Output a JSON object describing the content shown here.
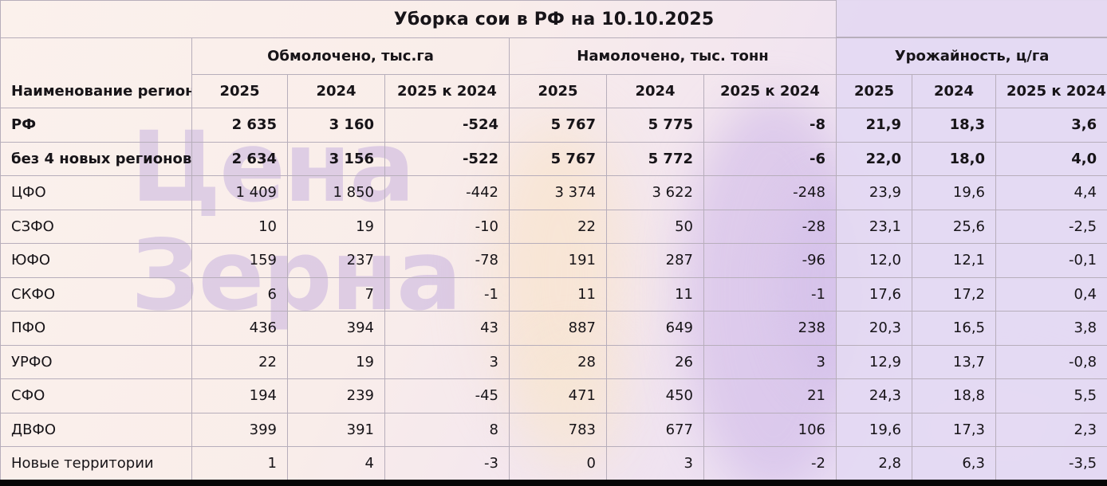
{
  "title": "Уборка сои в РФ на 10.10.2025",
  "watermark": {
    "line1": "Цена",
    "line2": "Зерна"
  },
  "colors": {
    "background_pink": "#f9edea",
    "background_lavender": "#e5daf1",
    "yield_column_lavender": "#e4d9f1",
    "grid_line": "#b7aebb",
    "text": "#171418",
    "watermark_purple": "#ddd1eb",
    "bottom_bar": "#060606"
  },
  "table": {
    "region_header": "Наименование регионов",
    "groups": [
      {
        "label": "Обмолочено, тыс.га"
      },
      {
        "label": "Намолочено, тыс. тонн"
      },
      {
        "label": "Урожайность, ц/га"
      }
    ],
    "sub_headers": [
      "2025",
      "2024",
      "2025 к 2024"
    ],
    "rows": [
      {
        "region": "РФ",
        "bold": true,
        "values": [
          "2 635",
          "3 160",
          "-524",
          "5 767",
          "5 775",
          "-8",
          "21,9",
          "18,3",
          "3,6"
        ]
      },
      {
        "region": "без 4 новых регионов",
        "bold": true,
        "values": [
          "2 634",
          "3 156",
          "-522",
          "5 767",
          "5 772",
          "-6",
          "22,0",
          "18,0",
          "4,0"
        ]
      },
      {
        "region": "ЦФО",
        "bold": false,
        "values": [
          "1 409",
          "1 850",
          "-442",
          "3 374",
          "3 622",
          "-248",
          "23,9",
          "19,6",
          "4,4"
        ]
      },
      {
        "region": "СЗФО",
        "bold": false,
        "values": [
          "10",
          "19",
          "-10",
          "22",
          "50",
          "-28",
          "23,1",
          "25,6",
          "-2,5"
        ]
      },
      {
        "region": "ЮФО",
        "bold": false,
        "values": [
          "159",
          "237",
          "-78",
          "191",
          "287",
          "-96",
          "12,0",
          "12,1",
          "-0,1"
        ]
      },
      {
        "region": "СКФО",
        "bold": false,
        "values": [
          "6",
          "7",
          "-1",
          "11",
          "11",
          "-1",
          "17,6",
          "17,2",
          "0,4"
        ]
      },
      {
        "region": "ПФО",
        "bold": false,
        "values": [
          "436",
          "394",
          "43",
          "887",
          "649",
          "238",
          "20,3",
          "16,5",
          "3,8"
        ]
      },
      {
        "region": "УРФО",
        "bold": false,
        "values": [
          "22",
          "19",
          "3",
          "28",
          "26",
          "3",
          "12,9",
          "13,7",
          "-0,8"
        ]
      },
      {
        "region": "СФО",
        "bold": false,
        "values": [
          "194",
          "239",
          "-45",
          "471",
          "450",
          "21",
          "24,3",
          "18,8",
          "5,5"
        ]
      },
      {
        "region": "ДВФО",
        "bold": false,
        "values": [
          "399",
          "391",
          "8",
          "783",
          "677",
          "106",
          "19,6",
          "17,3",
          "2,3"
        ]
      },
      {
        "region": "Новые территории",
        "bold": false,
        "values": [
          "1",
          "4",
          "-3",
          "0",
          "3",
          "-2",
          "2,8",
          "6,3",
          "-3,5"
        ]
      }
    ]
  },
  "chart_data": {
    "type": "table",
    "title": "Уборка сои в РФ на 10.10.2025",
    "column_groups": [
      "Обмолочено, тыс.га",
      "Намолочено, тыс. тонн",
      "Урожайность, ц/га"
    ],
    "columns_per_group": [
      "2025",
      "2024",
      "2025 к 2024"
    ],
    "categories": [
      "РФ",
      "без 4 новых регионов",
      "ЦФО",
      "СЗФО",
      "ЮФО",
      "СКФО",
      "ПФО",
      "УРФО",
      "СФО",
      "ДВФО",
      "Новые территории"
    ],
    "series": [
      {
        "name": "Обмолочено 2025",
        "values": [
          2635,
          2634,
          1409,
          10,
          159,
          6,
          436,
          22,
          194,
          399,
          1
        ]
      },
      {
        "name": "Обмолочено 2024",
        "values": [
          3160,
          3156,
          1850,
          19,
          237,
          7,
          394,
          19,
          239,
          391,
          4
        ]
      },
      {
        "name": "Обмолочено 2025 к 2024",
        "values": [
          -524,
          -522,
          -442,
          -10,
          -78,
          -1,
          43,
          3,
          -45,
          8,
          -3
        ]
      },
      {
        "name": "Намолочено 2025",
        "values": [
          5767,
          5767,
          3374,
          22,
          191,
          11,
          887,
          28,
          471,
          783,
          0
        ]
      },
      {
        "name": "Намолочено 2024",
        "values": [
          5775,
          5772,
          3622,
          50,
          287,
          11,
          649,
          26,
          450,
          677,
          3
        ]
      },
      {
        "name": "Намолочено 2025 к 2024",
        "values": [
          -8,
          -6,
          -248,
          -28,
          -96,
          -1,
          238,
          3,
          21,
          106,
          -2
        ]
      },
      {
        "name": "Урожайность 2025",
        "values": [
          21.9,
          22.0,
          23.9,
          23.1,
          12.0,
          17.6,
          20.3,
          12.9,
          24.3,
          19.6,
          2.8
        ]
      },
      {
        "name": "Урожайность 2024",
        "values": [
          18.3,
          18.0,
          19.6,
          25.6,
          12.1,
          17.2,
          16.5,
          13.7,
          18.8,
          17.3,
          6.3
        ]
      },
      {
        "name": "Урожайность 2025 к 2024",
        "values": [
          3.6,
          4.0,
          4.4,
          -2.5,
          -0.1,
          0.4,
          3.8,
          -0.8,
          5.5,
          2.3,
          -3.5
        ]
      }
    ]
  }
}
